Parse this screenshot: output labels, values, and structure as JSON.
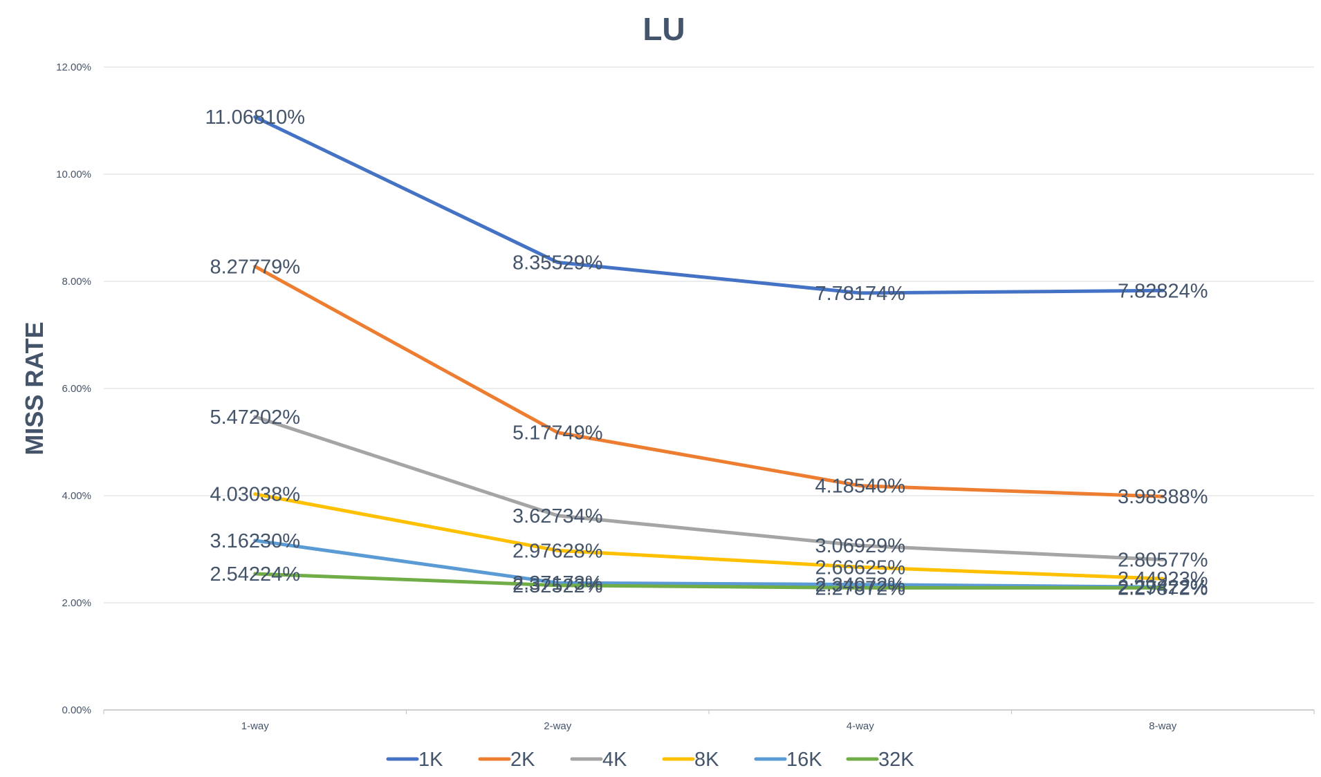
{
  "chart_data": {
    "type": "line",
    "title": "LU",
    "xlabel": "",
    "ylabel": "MISS RATE",
    "categories": [
      "1-way",
      "2-way",
      "4-way",
      "8-way"
    ],
    "ylim": [
      0,
      0.12
    ],
    "yticks": [
      "0.00%",
      "2.00%",
      "4.00%",
      "6.00%",
      "8.00%",
      "10.00%",
      "12.00%"
    ],
    "grid": true,
    "legend_position": "bottom",
    "series": [
      {
        "name": "1K",
        "color": "#4472c4",
        "values": [
          0.110681,
          0.0835529,
          0.0778174,
          0.0782824
        ],
        "labels": [
          "11.06810%",
          "8.35529%",
          "7.78174%",
          "7.82824%"
        ]
      },
      {
        "name": "2K",
        "color": "#ed7d31",
        "values": [
          0.0827779,
          0.0517749,
          0.041854,
          0.0398388
        ],
        "labels": [
          "8.27779%",
          "5.17749%",
          "4.18540%",
          "3.98388%"
        ]
      },
      {
        "name": "4K",
        "color": "#a5a5a5",
        "values": [
          0.0547202,
          0.0362734,
          0.0306929,
          0.0280577
        ],
        "labels": [
          "5.47202%",
          "3.62734%",
          "3.06929%",
          "2.80577%"
        ]
      },
      {
        "name": "8K",
        "color": "#ffc000",
        "values": [
          0.0403038,
          0.0297628,
          0.0266625,
          0.0244923
        ],
        "labels": [
          "4.03038%",
          "2.97628%",
          "2.66625%",
          "2.44923%"
        ]
      },
      {
        "name": "16K",
        "color": "#5b9bd5",
        "values": [
          0.031623,
          0.0237173,
          0.0234072,
          0.0229422
        ],
        "labels": [
          "3.16230%",
          "2.37173%",
          "2.34072%",
          "2.29422%"
        ]
      },
      {
        "name": "32K",
        "color": "#70ad47",
        "values": [
          0.0254224,
          0.0232522,
          0.0227872,
          0.0227872
        ],
        "labels": [
          "2.54224%",
          "2.32522%",
          "2.27872%",
          "2.27872%"
        ]
      }
    ]
  }
}
